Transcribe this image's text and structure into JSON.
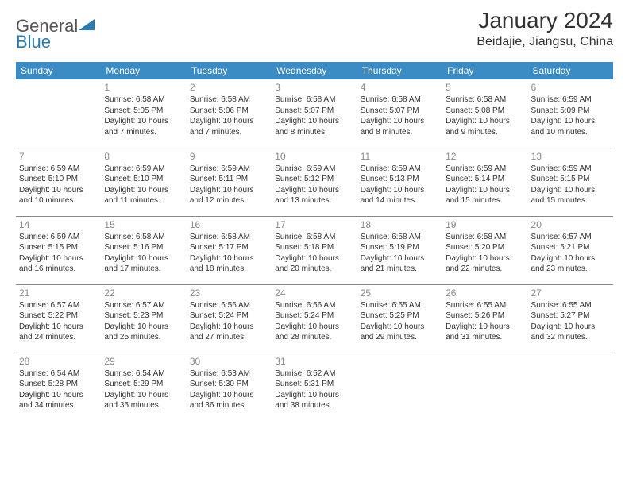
{
  "logo": {
    "text1": "General",
    "text2": "Blue"
  },
  "title": "January 2024",
  "location": "Beidajie, Jiangsu, China",
  "colors": {
    "header_bg": "#3b8bc4",
    "header_text": "#ffffff",
    "daynum": "#8a8a8a",
    "border": "#888888"
  },
  "weekdays": [
    "Sunday",
    "Monday",
    "Tuesday",
    "Wednesday",
    "Thursday",
    "Friday",
    "Saturday"
  ],
  "weeks": [
    [
      null,
      {
        "n": "1",
        "sr": "6:58 AM",
        "ss": "5:05 PM",
        "dh": "10",
        "dm": "7"
      },
      {
        "n": "2",
        "sr": "6:58 AM",
        "ss": "5:06 PM",
        "dh": "10",
        "dm": "7"
      },
      {
        "n": "3",
        "sr": "6:58 AM",
        "ss": "5:07 PM",
        "dh": "10",
        "dm": "8"
      },
      {
        "n": "4",
        "sr": "6:58 AM",
        "ss": "5:07 PM",
        "dh": "10",
        "dm": "8"
      },
      {
        "n": "5",
        "sr": "6:58 AM",
        "ss": "5:08 PM",
        "dh": "10",
        "dm": "9"
      },
      {
        "n": "6",
        "sr": "6:59 AM",
        "ss": "5:09 PM",
        "dh": "10",
        "dm": "10"
      }
    ],
    [
      {
        "n": "7",
        "sr": "6:59 AM",
        "ss": "5:10 PM",
        "dh": "10",
        "dm": "10"
      },
      {
        "n": "8",
        "sr": "6:59 AM",
        "ss": "5:10 PM",
        "dh": "10",
        "dm": "11"
      },
      {
        "n": "9",
        "sr": "6:59 AM",
        "ss": "5:11 PM",
        "dh": "10",
        "dm": "12"
      },
      {
        "n": "10",
        "sr": "6:59 AM",
        "ss": "5:12 PM",
        "dh": "10",
        "dm": "13"
      },
      {
        "n": "11",
        "sr": "6:59 AM",
        "ss": "5:13 PM",
        "dh": "10",
        "dm": "14"
      },
      {
        "n": "12",
        "sr": "6:59 AM",
        "ss": "5:14 PM",
        "dh": "10",
        "dm": "15"
      },
      {
        "n": "13",
        "sr": "6:59 AM",
        "ss": "5:15 PM",
        "dh": "10",
        "dm": "15"
      }
    ],
    [
      {
        "n": "14",
        "sr": "6:59 AM",
        "ss": "5:15 PM",
        "dh": "10",
        "dm": "16"
      },
      {
        "n": "15",
        "sr": "6:58 AM",
        "ss": "5:16 PM",
        "dh": "10",
        "dm": "17"
      },
      {
        "n": "16",
        "sr": "6:58 AM",
        "ss": "5:17 PM",
        "dh": "10",
        "dm": "18"
      },
      {
        "n": "17",
        "sr": "6:58 AM",
        "ss": "5:18 PM",
        "dh": "10",
        "dm": "20"
      },
      {
        "n": "18",
        "sr": "6:58 AM",
        "ss": "5:19 PM",
        "dh": "10",
        "dm": "21"
      },
      {
        "n": "19",
        "sr": "6:58 AM",
        "ss": "5:20 PM",
        "dh": "10",
        "dm": "22"
      },
      {
        "n": "20",
        "sr": "6:57 AM",
        "ss": "5:21 PM",
        "dh": "10",
        "dm": "23"
      }
    ],
    [
      {
        "n": "21",
        "sr": "6:57 AM",
        "ss": "5:22 PM",
        "dh": "10",
        "dm": "24"
      },
      {
        "n": "22",
        "sr": "6:57 AM",
        "ss": "5:23 PM",
        "dh": "10",
        "dm": "25"
      },
      {
        "n": "23",
        "sr": "6:56 AM",
        "ss": "5:24 PM",
        "dh": "10",
        "dm": "27"
      },
      {
        "n": "24",
        "sr": "6:56 AM",
        "ss": "5:24 PM",
        "dh": "10",
        "dm": "28"
      },
      {
        "n": "25",
        "sr": "6:55 AM",
        "ss": "5:25 PM",
        "dh": "10",
        "dm": "29"
      },
      {
        "n": "26",
        "sr": "6:55 AM",
        "ss": "5:26 PM",
        "dh": "10",
        "dm": "31"
      },
      {
        "n": "27",
        "sr": "6:55 AM",
        "ss": "5:27 PM",
        "dh": "10",
        "dm": "32"
      }
    ],
    [
      {
        "n": "28",
        "sr": "6:54 AM",
        "ss": "5:28 PM",
        "dh": "10",
        "dm": "34"
      },
      {
        "n": "29",
        "sr": "6:54 AM",
        "ss": "5:29 PM",
        "dh": "10",
        "dm": "35"
      },
      {
        "n": "30",
        "sr": "6:53 AM",
        "ss": "5:30 PM",
        "dh": "10",
        "dm": "36"
      },
      {
        "n": "31",
        "sr": "6:52 AM",
        "ss": "5:31 PM",
        "dh": "10",
        "dm": "38"
      },
      null,
      null,
      null
    ]
  ]
}
